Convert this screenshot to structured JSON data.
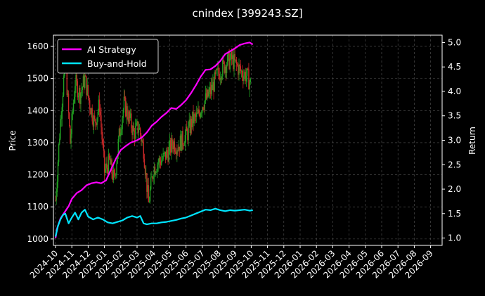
{
  "chart_data": {
    "type": "line",
    "title": "cnindex [399243.SZ]",
    "ylabel_left": "Price",
    "ylabel_right": "Return",
    "left_ylim": [
      980,
      1635
    ],
    "right_ylim": [
      0.85,
      5.15
    ],
    "left_yticks": [
      1000,
      1100,
      1200,
      1300,
      1400,
      1500,
      1600
    ],
    "right_yticks": [
      "1.0",
      "1.5",
      "2.0",
      "2.5",
      "3.0",
      "3.5",
      "4.0",
      "4.5",
      "5.0"
    ],
    "x_ticks": [
      "2024-10",
      "2024-11",
      "2024-12",
      "2025-01",
      "2025-02",
      "2025-03",
      "2025-04",
      "2025-05",
      "2025-06",
      "2025-07",
      "2025-08",
      "2025-09",
      "2025-10",
      "2025-11",
      "2025-12",
      "2026-01",
      "2026-02",
      "2026-03",
      "2026-04",
      "2026-05",
      "2026-06",
      "2026-07",
      "2026-08",
      "2026-09"
    ],
    "grid": true,
    "legend_position": "top-left",
    "colors": {
      "up": "#22a022",
      "down": "#c82828",
      "ai": "#ff00ff",
      "bh": "#00e5ff",
      "grid": "#555555"
    },
    "series": [
      {
        "name": "AI Strategy",
        "axis": "right",
        "x": [
          0,
          0.1,
          0.3,
          0.5,
          0.8,
          1.0,
          1.3,
          1.6,
          1.9,
          2.2,
          2.5,
          2.8,
          3.1,
          3.4,
          3.7,
          4.0,
          4.3,
          4.6,
          5.0,
          5.3,
          5.6,
          5.9,
          6.2,
          6.5,
          6.8,
          7.1,
          7.4,
          7.7,
          8.0,
          8.3,
          8.6,
          8.9,
          9.2,
          9.5,
          9.8,
          10.1,
          10.4,
          10.7,
          11.0,
          11.3,
          11.6,
          11.9,
          12.1
        ],
        "values": [
          1.0,
          1.2,
          1.4,
          1.5,
          1.65,
          1.8,
          1.92,
          1.98,
          2.08,
          2.12,
          2.14,
          2.12,
          2.18,
          2.4,
          2.62,
          2.8,
          2.88,
          2.95,
          3.0,
          3.06,
          3.16,
          3.3,
          3.38,
          3.48,
          3.56,
          3.66,
          3.64,
          3.72,
          3.82,
          3.96,
          4.12,
          4.3,
          4.44,
          4.45,
          4.52,
          4.62,
          4.76,
          4.82,
          4.88,
          4.95,
          4.98,
          5.0,
          4.96
        ]
      },
      {
        "name": "Buy-and-Hold",
        "axis": "right",
        "x": [
          0,
          0.15,
          0.3,
          0.45,
          0.6,
          0.8,
          1.0,
          1.2,
          1.4,
          1.6,
          1.8,
          2.0,
          2.3,
          2.6,
          2.9,
          3.2,
          3.5,
          3.8,
          4.1,
          4.4,
          4.7,
          5.0,
          5.2,
          5.4,
          5.6,
          5.9,
          6.2,
          6.5,
          6.8,
          7.1,
          7.4,
          7.7,
          8.0,
          8.3,
          8.6,
          8.9,
          9.2,
          9.5,
          9.8,
          10.1,
          10.4,
          10.7,
          11.0,
          11.3,
          11.6,
          11.9,
          12.1
        ],
        "values": [
          1.03,
          1.25,
          1.38,
          1.47,
          1.5,
          1.3,
          1.42,
          1.52,
          1.38,
          1.52,
          1.58,
          1.44,
          1.38,
          1.42,
          1.38,
          1.32,
          1.3,
          1.33,
          1.36,
          1.42,
          1.45,
          1.42,
          1.45,
          1.3,
          1.28,
          1.3,
          1.3,
          1.32,
          1.33,
          1.35,
          1.37,
          1.4,
          1.42,
          1.46,
          1.5,
          1.54,
          1.58,
          1.57,
          1.6,
          1.57,
          1.55,
          1.57,
          1.56,
          1.57,
          1.58,
          1.56,
          1.57
        ]
      }
    ],
    "candles": {
      "axis": "left",
      "x": [
        0,
        0.3,
        0.6,
        0.9,
        1.2,
        1.5,
        1.8,
        2.1,
        2.4,
        2.7,
        3.0,
        3.3,
        3.6,
        3.9,
        4.2,
        4.5,
        4.8,
        5.1,
        5.4,
        5.7,
        6.0,
        6.3,
        6.6,
        6.9,
        7.2,
        7.5,
        7.8,
        8.1,
        8.4,
        8.7,
        9.0,
        9.3,
        9.6,
        9.9,
        10.2,
        10.5,
        10.8,
        11.1,
        11.4,
        11.7,
        12.0
      ],
      "close": [
        1120,
        1370,
        1560,
        1300,
        1490,
        1450,
        1500,
        1420,
        1360,
        1420,
        1210,
        1240,
        1180,
        1320,
        1420,
        1380,
        1330,
        1350,
        1280,
        1110,
        1220,
        1240,
        1250,
        1270,
        1300,
        1290,
        1310,
        1330,
        1370,
        1380,
        1420,
        1440,
        1470,
        1510,
        1530,
        1550,
        1560,
        1540,
        1520,
        1510,
        1480
      ]
    }
  }
}
